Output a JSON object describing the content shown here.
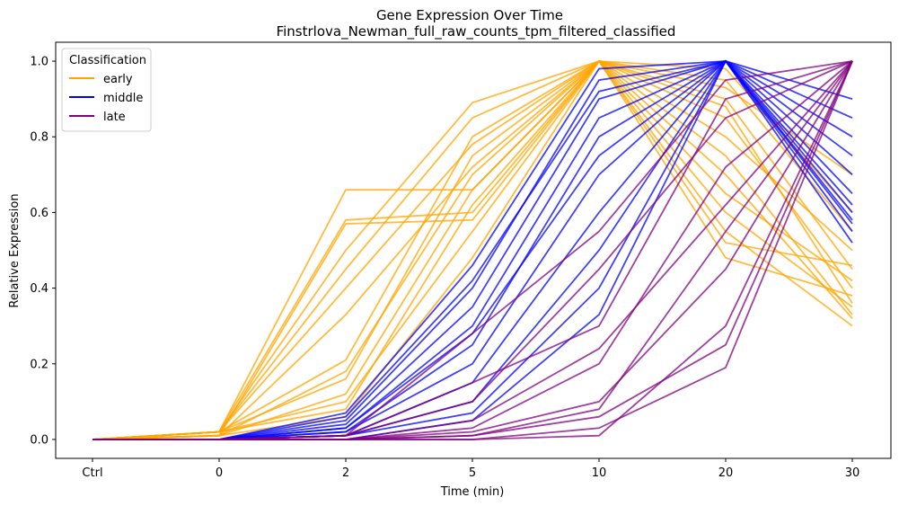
{
  "chart_data": {
    "type": "line",
    "title": "Gene Expression Over Time",
    "subtitle": "Finstrlova_Newman_full_raw_counts_tpm_filtered_classified",
    "xlabel": "Time (min)",
    "ylabel": "Relative Expression",
    "categories": [
      "Ctrl",
      "0",
      "2",
      "5",
      "10",
      "20",
      "30"
    ],
    "yticks": [
      "0.0",
      "0.2",
      "0.4",
      "0.6",
      "0.8",
      "1.0"
    ],
    "ylim": [
      -0.05,
      1.05
    ],
    "grid": false,
    "legend": {
      "title": "Classification",
      "placement": "top-left",
      "entries": [
        "early",
        "middle",
        "late"
      ]
    },
    "colors": {
      "early": "#FFA500",
      "middle": "#0000FF",
      "late": "#800080"
    },
    "series": [
      {
        "class": "early",
        "values": [
          0.0,
          0.02,
          0.66,
          0.66,
          1.0,
          0.95,
          0.55
        ]
      },
      {
        "class": "early",
        "values": [
          0.0,
          0.02,
          0.58,
          0.6,
          1.0,
          0.9,
          0.45
        ]
      },
      {
        "class": "early",
        "values": [
          0.0,
          0.01,
          0.57,
          0.58,
          1.0,
          0.85,
          0.4
        ]
      },
      {
        "class": "early",
        "values": [
          0.0,
          0.02,
          0.5,
          0.89,
          1.0,
          0.6,
          0.35
        ]
      },
      {
        "class": "early",
        "values": [
          0.0,
          0.02,
          0.45,
          0.85,
          1.0,
          0.7,
          0.32
        ]
      },
      {
        "class": "early",
        "values": [
          0.0,
          0.01,
          0.33,
          0.72,
          1.0,
          0.55,
          0.3
        ]
      },
      {
        "class": "early",
        "values": [
          0.0,
          0.02,
          0.21,
          0.8,
          1.0,
          0.48,
          0.38
        ]
      },
      {
        "class": "early",
        "values": [
          0.0,
          0.02,
          0.16,
          0.75,
          1.0,
          0.65,
          0.42
        ]
      },
      {
        "class": "early",
        "values": [
          0.0,
          0.01,
          0.12,
          0.66,
          1.0,
          0.8,
          0.5
        ]
      },
      {
        "class": "early",
        "values": [
          0.0,
          0.02,
          0.1,
          0.55,
          1.0,
          0.98,
          0.6
        ]
      },
      {
        "class": "early",
        "values": [
          0.0,
          0.01,
          0.06,
          0.48,
          1.0,
          0.93,
          0.7
        ]
      },
      {
        "class": "early",
        "values": [
          0.0,
          0.02,
          0.08,
          0.62,
          1.0,
          0.75,
          0.33
        ]
      },
      {
        "class": "early",
        "values": [
          0.0,
          0.01,
          0.18,
          0.7,
          1.0,
          0.88,
          0.36
        ]
      },
      {
        "class": "early",
        "values": [
          0.0,
          0.02,
          0.4,
          0.78,
          1.0,
          0.52,
          0.46
        ]
      },
      {
        "class": "middle",
        "values": [
          0.0,
          0.0,
          0.07,
          0.46,
          0.98,
          1.0,
          0.55
        ]
      },
      {
        "class": "middle",
        "values": [
          0.0,
          0.0,
          0.05,
          0.4,
          0.95,
          1.0,
          0.6
        ]
      },
      {
        "class": "middle",
        "values": [
          0.0,
          0.0,
          0.04,
          0.35,
          0.9,
          1.0,
          0.65
        ]
      },
      {
        "class": "middle",
        "values": [
          0.0,
          0.0,
          0.03,
          0.3,
          0.85,
          1.0,
          0.9
        ]
      },
      {
        "class": "middle",
        "values": [
          0.0,
          0.0,
          0.02,
          0.25,
          0.8,
          1.0,
          0.75
        ]
      },
      {
        "class": "middle",
        "values": [
          0.0,
          0.0,
          0.02,
          0.2,
          0.7,
          1.0,
          0.58
        ]
      },
      {
        "class": "middle",
        "values": [
          0.0,
          0.0,
          0.01,
          0.15,
          0.6,
          1.0,
          0.62
        ]
      },
      {
        "class": "middle",
        "values": [
          0.0,
          0.0,
          0.01,
          0.1,
          0.5,
          1.0,
          0.7
        ]
      },
      {
        "class": "middle",
        "values": [
          0.0,
          0.0,
          0.01,
          0.07,
          0.4,
          1.0,
          0.8
        ]
      },
      {
        "class": "middle",
        "values": [
          0.0,
          0.0,
          0.0,
          0.05,
          0.33,
          1.0,
          0.85
        ]
      },
      {
        "class": "middle",
        "values": [
          0.0,
          0.0,
          0.03,
          0.28,
          0.75,
          1.0,
          0.52
        ]
      },
      {
        "class": "middle",
        "values": [
          0.0,
          0.0,
          0.06,
          0.42,
          0.92,
          1.0,
          0.57
        ]
      },
      {
        "class": "late",
        "values": [
          0.0,
          0.0,
          0.01,
          0.28,
          0.55,
          0.95,
          1.0
        ]
      },
      {
        "class": "late",
        "values": [
          0.0,
          0.0,
          0.01,
          0.15,
          0.3,
          0.9,
          1.0
        ]
      },
      {
        "class": "late",
        "values": [
          0.0,
          0.0,
          0.0,
          0.05,
          0.24,
          0.62,
          1.0
        ]
      },
      {
        "class": "late",
        "values": [
          0.0,
          0.0,
          0.0,
          0.02,
          0.1,
          0.45,
          1.0
        ]
      },
      {
        "class": "late",
        "values": [
          0.0,
          0.0,
          0.0,
          0.01,
          0.06,
          0.25,
          1.0
        ]
      },
      {
        "class": "late",
        "values": [
          0.0,
          0.0,
          0.0,
          0.0,
          0.03,
          0.19,
          1.0
        ]
      },
      {
        "class": "late",
        "values": [
          0.0,
          0.0,
          0.0,
          0.0,
          0.01,
          0.3,
          1.0
        ]
      },
      {
        "class": "late",
        "values": [
          0.0,
          0.0,
          0.0,
          0.01,
          0.08,
          0.55,
          1.0
        ]
      },
      {
        "class": "late",
        "values": [
          0.0,
          0.0,
          0.0,
          0.03,
          0.2,
          0.72,
          1.0
        ]
      },
      {
        "class": "late",
        "values": [
          0.0,
          0.0,
          0.01,
          0.1,
          0.45,
          0.85,
          1.0
        ]
      }
    ]
  }
}
